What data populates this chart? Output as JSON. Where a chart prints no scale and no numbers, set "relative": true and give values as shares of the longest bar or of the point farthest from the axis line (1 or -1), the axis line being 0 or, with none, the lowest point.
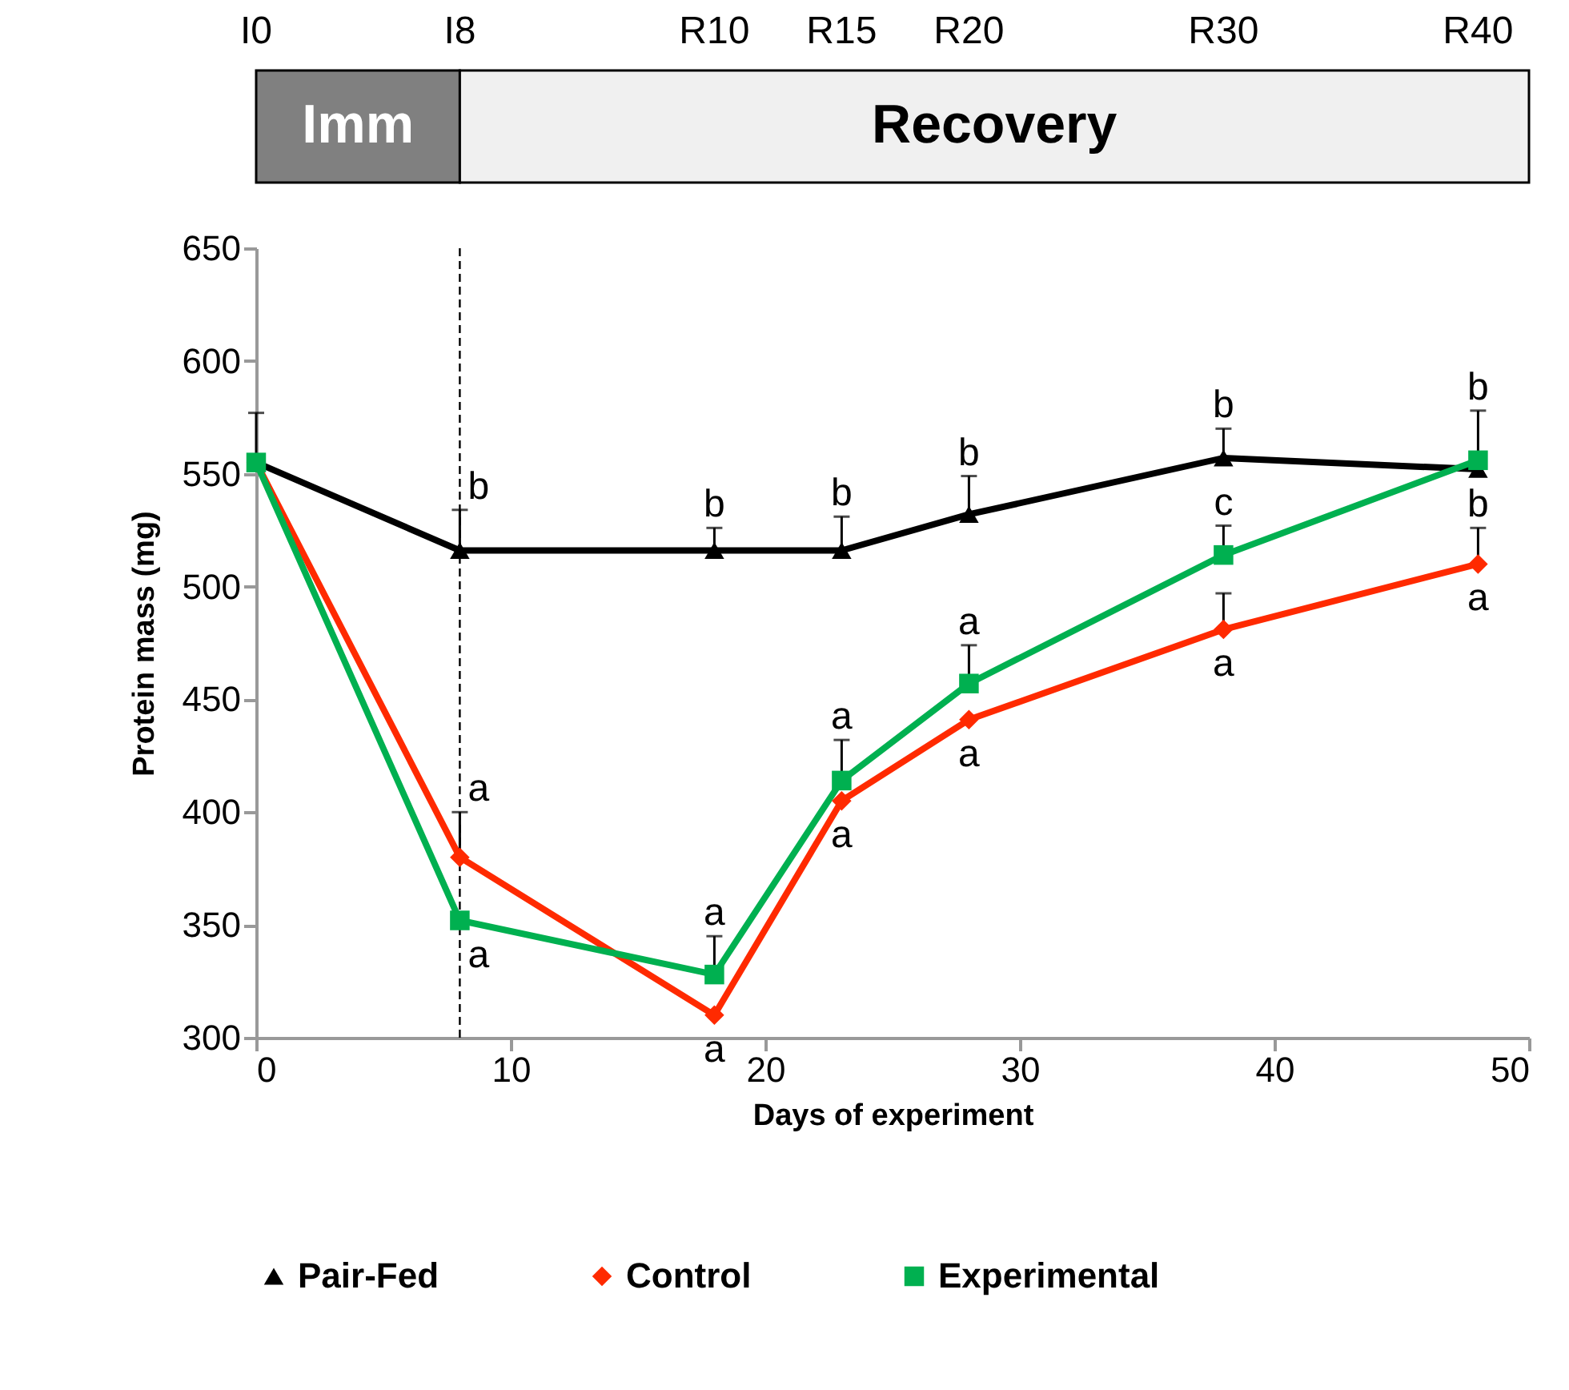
{
  "chart_data": [
    {
      "type": "bar",
      "orientation": "horizontal",
      "stacked": true,
      "relative": true,
      "categories": [
        null
      ],
      "series": [
        {
          "name": "Imm",
          "color": "#808080",
          "values": [
            0.16
          ]
        },
        {
          "name": "Recovery",
          "color": "#f0f0f0",
          "values": [
            0.84
          ]
        }
      ],
      "annotations": [
        "I0",
        "I8",
        "R10",
        "R15",
        "R20",
        "R30",
        "R40"
      ],
      "legend": false
    },
    {
      "type": "line",
      "xlabel": "Days of experiment",
      "ylabel": "Protein mass (mg)",
      "x": [
        0,
        8,
        18,
        23,
        28,
        38,
        48
      ],
      "xlim": [
        0,
        50
      ],
      "xticks": [
        0,
        10,
        20,
        30,
        40,
        50
      ],
      "ylim": [
        300,
        650
      ],
      "yticks": [
        300,
        350,
        400,
        450,
        500,
        550,
        600,
        650
      ],
      "series": [
        {
          "name": "Pair-Fed",
          "color": "#000000",
          "marker": "triangle",
          "values": [
            555,
            516,
            516,
            516,
            532,
            557,
            552
          ],
          "errors": [
            [
              555,
              577
            ],
            [
              516,
              534
            ],
            [
              516,
              526
            ],
            [
              516,
              531
            ],
            [
              532,
              549
            ],
            [
              557,
              570
            ],
            null
          ]
        },
        {
          "name": "Control",
          "color": "#ff2a00",
          "marker": "diamond",
          "values": [
            555,
            380,
            310,
            405,
            441,
            481,
            510
          ],
          "errors": [
            null,
            [
              380,
              400
            ],
            null,
            null,
            null,
            [
              481,
              497
            ],
            [
              510,
              526
            ]
          ]
        },
        {
          "name": "Experimental",
          "color": "#00b050",
          "marker": "square",
          "values": [
            555,
            352,
            328,
            414,
            457,
            514,
            556
          ],
          "errors": [
            null,
            null,
            [
              328,
              345
            ],
            [
              414,
              432
            ],
            [
              457,
              474
            ],
            [
              514,
              527
            ],
            [
              556,
              578
            ]
          ]
        }
      ],
      "ref_lines": [
        {
          "axis": "x",
          "value": 8,
          "line_style": "dashed",
          "color": "#000000"
        }
      ],
      "annotations": [
        {
          "text": "b",
          "x": 8,
          "y": 516
        },
        {
          "text": "a",
          "x": 8,
          "y": 380
        },
        {
          "text": "a",
          "x": 8,
          "y": 352
        },
        {
          "text": "b",
          "x": 18,
          "y": 516
        },
        {
          "text": "a",
          "x": 18,
          "y": 328
        },
        {
          "text": "a",
          "x": 18,
          "y": 310
        },
        {
          "text": "b",
          "x": 23,
          "y": 516
        },
        {
          "text": "a",
          "x": 23,
          "y": 414
        },
        {
          "text": "a",
          "x": 23,
          "y": 405
        },
        {
          "text": "b",
          "x": 28,
          "y": 532
        },
        {
          "text": "a",
          "x": 28,
          "y": 457
        },
        {
          "text": "a",
          "x": 28,
          "y": 441
        },
        {
          "text": "b",
          "x": 38,
          "y": 557
        },
        {
          "text": "c",
          "x": 38,
          "y": 514
        },
        {
          "text": "a",
          "x": 38,
          "y": 481
        },
        {
          "text": "b",
          "x": 48,
          "y": 556
        },
        {
          "text": "b",
          "x": 48,
          "y": 510
        },
        {
          "text": "a",
          "x": 48,
          "y": 510
        }
      ],
      "legend": "bottom",
      "grid": false,
      "line_style": "solid"
    }
  ]
}
